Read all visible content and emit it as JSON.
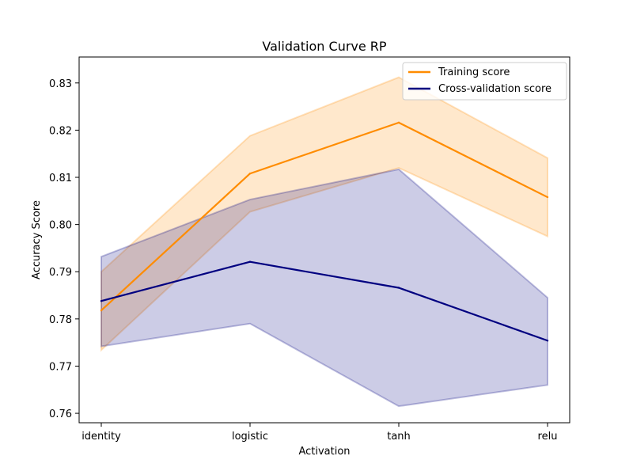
{
  "chart_data": {
    "type": "line",
    "title": "Validation Curve RP",
    "xlabel": "Activation",
    "ylabel": "Accuracy Score",
    "categories": [
      "identity",
      "logistic",
      "tanh",
      "relu"
    ],
    "ylim": [
      0.758,
      0.8355
    ],
    "yticks": [
      0.76,
      0.77,
      0.78,
      0.79,
      0.8,
      0.81,
      0.82,
      0.83
    ],
    "ytick_labels": [
      "0.76",
      "0.77",
      "0.78",
      "0.79",
      "0.80",
      "0.81",
      "0.82",
      "0.83"
    ],
    "grid": false,
    "legend_position": "upper right",
    "series": [
      {
        "name": "Training score",
        "color": "#ff8c00",
        "band_color": "#ff8c00",
        "values": [
          0.7818,
          0.8108,
          0.8216,
          0.8058
        ],
        "upper": [
          0.79,
          0.8188,
          0.8312,
          0.8141
        ],
        "lower": [
          0.7734,
          0.8027,
          0.812,
          0.7975
        ]
      },
      {
        "name": "Cross-validation score",
        "color": "#000080",
        "band_color": "#000080",
        "values": [
          0.7838,
          0.7921,
          0.7866,
          0.7754
        ],
        "upper": [
          0.7932,
          0.8053,
          0.8117,
          0.7845
        ],
        "lower": [
          0.7742,
          0.779,
          0.7615,
          0.766
        ]
      }
    ]
  }
}
